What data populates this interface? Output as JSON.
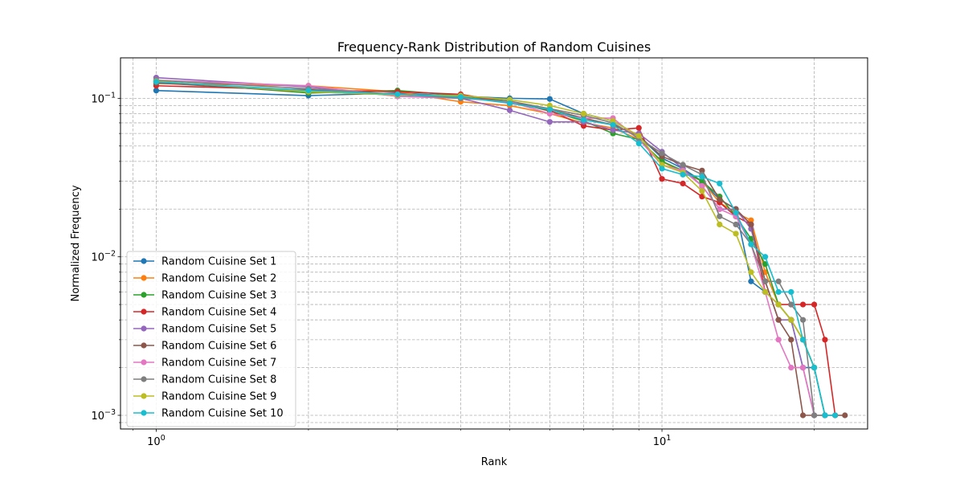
{
  "chart_data": {
    "type": "line",
    "title": "Frequency-Rank Distribution of Random Cuisines",
    "xlabel": "Rank",
    "ylabel": "Normalized Frequency",
    "xscale": "log",
    "yscale": "log",
    "grid": true,
    "legend_position": "lower left",
    "xlim": [
      0.85,
      25.5
    ],
    "ylim": [
      0.00082,
      0.18
    ],
    "x_ticks": [
      {
        "value": 1,
        "base": "10",
        "exp": "0"
      },
      {
        "value": 10,
        "base": "10",
        "exp": "1"
      }
    ],
    "y_ticks": [
      {
        "value": 0.001,
        "base": "10",
        "exp": "−3"
      },
      {
        "value": 0.01,
        "base": "10",
        "exp": "−2"
      },
      {
        "value": 0.1,
        "base": "10",
        "exp": "−1"
      }
    ],
    "series": [
      {
        "name": "Random Cuisine Set 1",
        "color": "#1f77b4",
        "x": [
          1,
          2,
          3,
          4,
          5,
          6,
          7,
          8,
          9,
          10,
          11,
          12,
          13,
          14,
          15,
          16,
          17,
          18,
          19,
          20,
          21
        ],
        "y": [
          0.112,
          0.104,
          0.108,
          0.103,
          0.1,
          0.099,
          0.08,
          0.072,
          0.058,
          0.042,
          0.036,
          0.03,
          0.023,
          0.02,
          0.007,
          0.006,
          0.005,
          0.004,
          0.002,
          0.002,
          0.001
        ]
      },
      {
        "name": "Random Cuisine Set 2",
        "color": "#ff7f0e",
        "x": [
          1,
          2,
          3,
          4,
          5,
          6,
          7,
          8,
          9,
          10,
          11,
          12,
          13,
          14,
          15,
          16,
          17,
          18,
          19,
          20
        ],
        "y": [
          0.124,
          0.12,
          0.11,
          0.095,
          0.09,
          0.08,
          0.07,
          0.065,
          0.055,
          0.04,
          0.034,
          0.03,
          0.022,
          0.019,
          0.017,
          0.008,
          0.005,
          0.004,
          0.003,
          0.002
        ]
      },
      {
        "name": "Random Cuisine Set 3",
        "color": "#2ca02c",
        "x": [
          1,
          2,
          3,
          4,
          5,
          6,
          7,
          8,
          9,
          10,
          11,
          12,
          13,
          14,
          15,
          16,
          17,
          18,
          19,
          20,
          21
        ],
        "y": [
          0.128,
          0.108,
          0.112,
          0.104,
          0.096,
          0.083,
          0.072,
          0.06,
          0.055,
          0.04,
          0.035,
          0.03,
          0.024,
          0.018,
          0.013,
          0.009,
          0.005,
          0.004,
          0.003,
          0.002,
          0.001
        ]
      },
      {
        "name": "Random Cuisine Set 4",
        "color": "#d62728",
        "x": [
          1,
          2,
          3,
          4,
          5,
          6,
          7,
          8,
          9,
          10,
          11,
          12,
          13,
          14,
          15,
          16,
          17,
          18,
          19,
          20,
          21,
          22
        ],
        "y": [
          0.12,
          0.113,
          0.11,
          0.106,
          0.094,
          0.084,
          0.067,
          0.063,
          0.065,
          0.031,
          0.029,
          0.024,
          0.022,
          0.018,
          0.016,
          0.006,
          0.005,
          0.005,
          0.005,
          0.005,
          0.003,
          0.001
        ]
      },
      {
        "name": "Random Cuisine Set 5",
        "color": "#9467bd",
        "x": [
          1,
          2,
          3,
          4,
          5,
          6,
          7,
          8,
          9,
          10,
          11,
          12,
          13,
          14,
          15,
          16,
          17,
          18,
          19,
          20
        ],
        "y": [
          0.135,
          0.118,
          0.103,
          0.1,
          0.084,
          0.071,
          0.071,
          0.063,
          0.06,
          0.046,
          0.036,
          0.028,
          0.02,
          0.02,
          0.015,
          0.007,
          0.004,
          0.004,
          0.002,
          0.001
        ]
      },
      {
        "name": "Random Cuisine Set 6",
        "color": "#8c564b",
        "x": [
          1,
          2,
          3,
          4,
          5,
          6,
          7,
          8,
          9,
          10,
          11,
          12,
          13,
          14,
          15,
          16,
          17,
          18,
          19,
          20,
          21,
          22,
          23
        ],
        "y": [
          0.125,
          0.11,
          0.105,
          0.102,
          0.095,
          0.085,
          0.075,
          0.068,
          0.058,
          0.043,
          0.038,
          0.035,
          0.023,
          0.02,
          0.016,
          0.007,
          0.004,
          0.003,
          0.001,
          0.001,
          0.001,
          0.001,
          0.001
        ]
      },
      {
        "name": "Random Cuisine Set 7",
        "color": "#e377c2",
        "x": [
          1,
          2,
          3,
          4,
          5,
          6,
          7,
          8,
          9,
          10,
          11,
          12,
          13,
          14,
          15,
          16,
          17,
          18,
          19,
          20
        ],
        "y": [
          0.13,
          0.12,
          0.103,
          0.1,
          0.095,
          0.08,
          0.075,
          0.075,
          0.055,
          0.038,
          0.035,
          0.028,
          0.02,
          0.018,
          0.012,
          0.006,
          0.003,
          0.002,
          0.002,
          0.001
        ]
      },
      {
        "name": "Random Cuisine Set 8",
        "color": "#7f7f7f",
        "x": [
          1,
          2,
          3,
          4,
          5,
          6,
          7,
          8,
          9,
          10,
          11,
          12,
          13,
          14,
          15,
          16,
          17,
          18,
          19,
          20,
          21
        ],
        "y": [
          0.13,
          0.115,
          0.106,
          0.1,
          0.096,
          0.086,
          0.078,
          0.07,
          0.056,
          0.045,
          0.038,
          0.033,
          0.018,
          0.016,
          0.012,
          0.007,
          0.007,
          0.005,
          0.004,
          0.001,
          0.001
        ]
      },
      {
        "name": "Random Cuisine Set 9",
        "color": "#bcbd22",
        "x": [
          1,
          2,
          3,
          4,
          5,
          6,
          7,
          8,
          9,
          10,
          11,
          12,
          13,
          14,
          15,
          16,
          17,
          18,
          19,
          20
        ],
        "y": [
          0.128,
          0.11,
          0.105,
          0.104,
          0.098,
          0.09,
          0.08,
          0.072,
          0.058,
          0.038,
          0.034,
          0.026,
          0.016,
          0.014,
          0.008,
          0.006,
          0.005,
          0.004,
          0.003,
          0.002
        ]
      },
      {
        "name": "Random Cuisine Set 10",
        "color": "#17becf",
        "x": [
          1,
          2,
          3,
          4,
          5,
          6,
          7,
          8,
          9,
          10,
          11,
          12,
          13,
          14,
          15,
          16,
          17,
          18,
          19,
          20,
          21,
          22
        ],
        "y": [
          0.127,
          0.112,
          0.106,
          0.102,
          0.093,
          0.085,
          0.073,
          0.068,
          0.052,
          0.036,
          0.033,
          0.032,
          0.029,
          0.019,
          0.012,
          0.01,
          0.006,
          0.006,
          0.003,
          0.002,
          0.001,
          0.001
        ]
      }
    ]
  }
}
